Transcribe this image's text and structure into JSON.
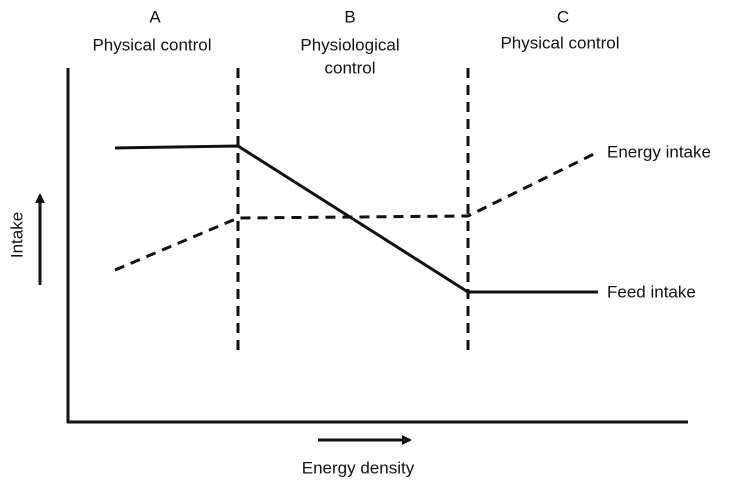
{
  "regions": [
    {
      "letter": "A",
      "label": [
        "Physical control"
      ]
    },
    {
      "letter": "B",
      "label": [
        "Physiological",
        "control"
      ]
    },
    {
      "letter": "C",
      "label": [
        "Physical control"
      ]
    }
  ],
  "lines": {
    "energy": "Energy intake",
    "feed": "Feed intake"
  },
  "axes": {
    "y": "Intake",
    "x": "Energy density"
  }
}
